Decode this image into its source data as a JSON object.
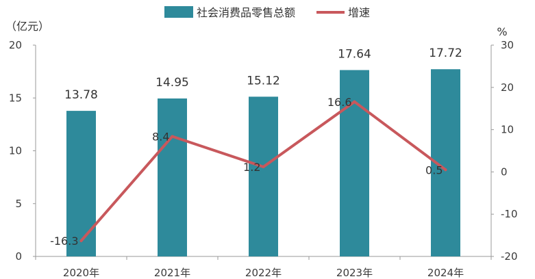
{
  "chart_data": {
    "type": "bar",
    "categories": [
      "2020年",
      "2021年",
      "2022年",
      "2023年",
      "2024年"
    ],
    "series": [
      {
        "name": "社会消费品零售总额",
        "type": "bar",
        "axis": "left",
        "values": [
          13.78,
          14.95,
          15.12,
          17.64,
          17.72
        ],
        "labels": [
          "13.78",
          "14.95",
          "15.12",
          "17.64",
          "17.72"
        ],
        "color": "#2e8a9b"
      },
      {
        "name": "增速",
        "type": "line",
        "axis": "right",
        "values": [
          -16.3,
          8.4,
          1.2,
          16.6,
          0.5
        ],
        "labels": [
          "-16.3",
          "8.4",
          "1.2",
          "16.6",
          "0.5"
        ],
        "color": "#c8585c"
      }
    ],
    "left_axis": {
      "unit": "（亿元）",
      "ylim": [
        0,
        20
      ],
      "ticks": [
        "0",
        "5",
        "10",
        "15",
        "20"
      ]
    },
    "right_axis": {
      "unit": "%",
      "ylim": [
        -20,
        30
      ],
      "ticks": [
        "-20",
        "-10",
        "0",
        "10",
        "20",
        "30"
      ]
    },
    "legend": {
      "position": "top-center"
    },
    "grid": false
  }
}
